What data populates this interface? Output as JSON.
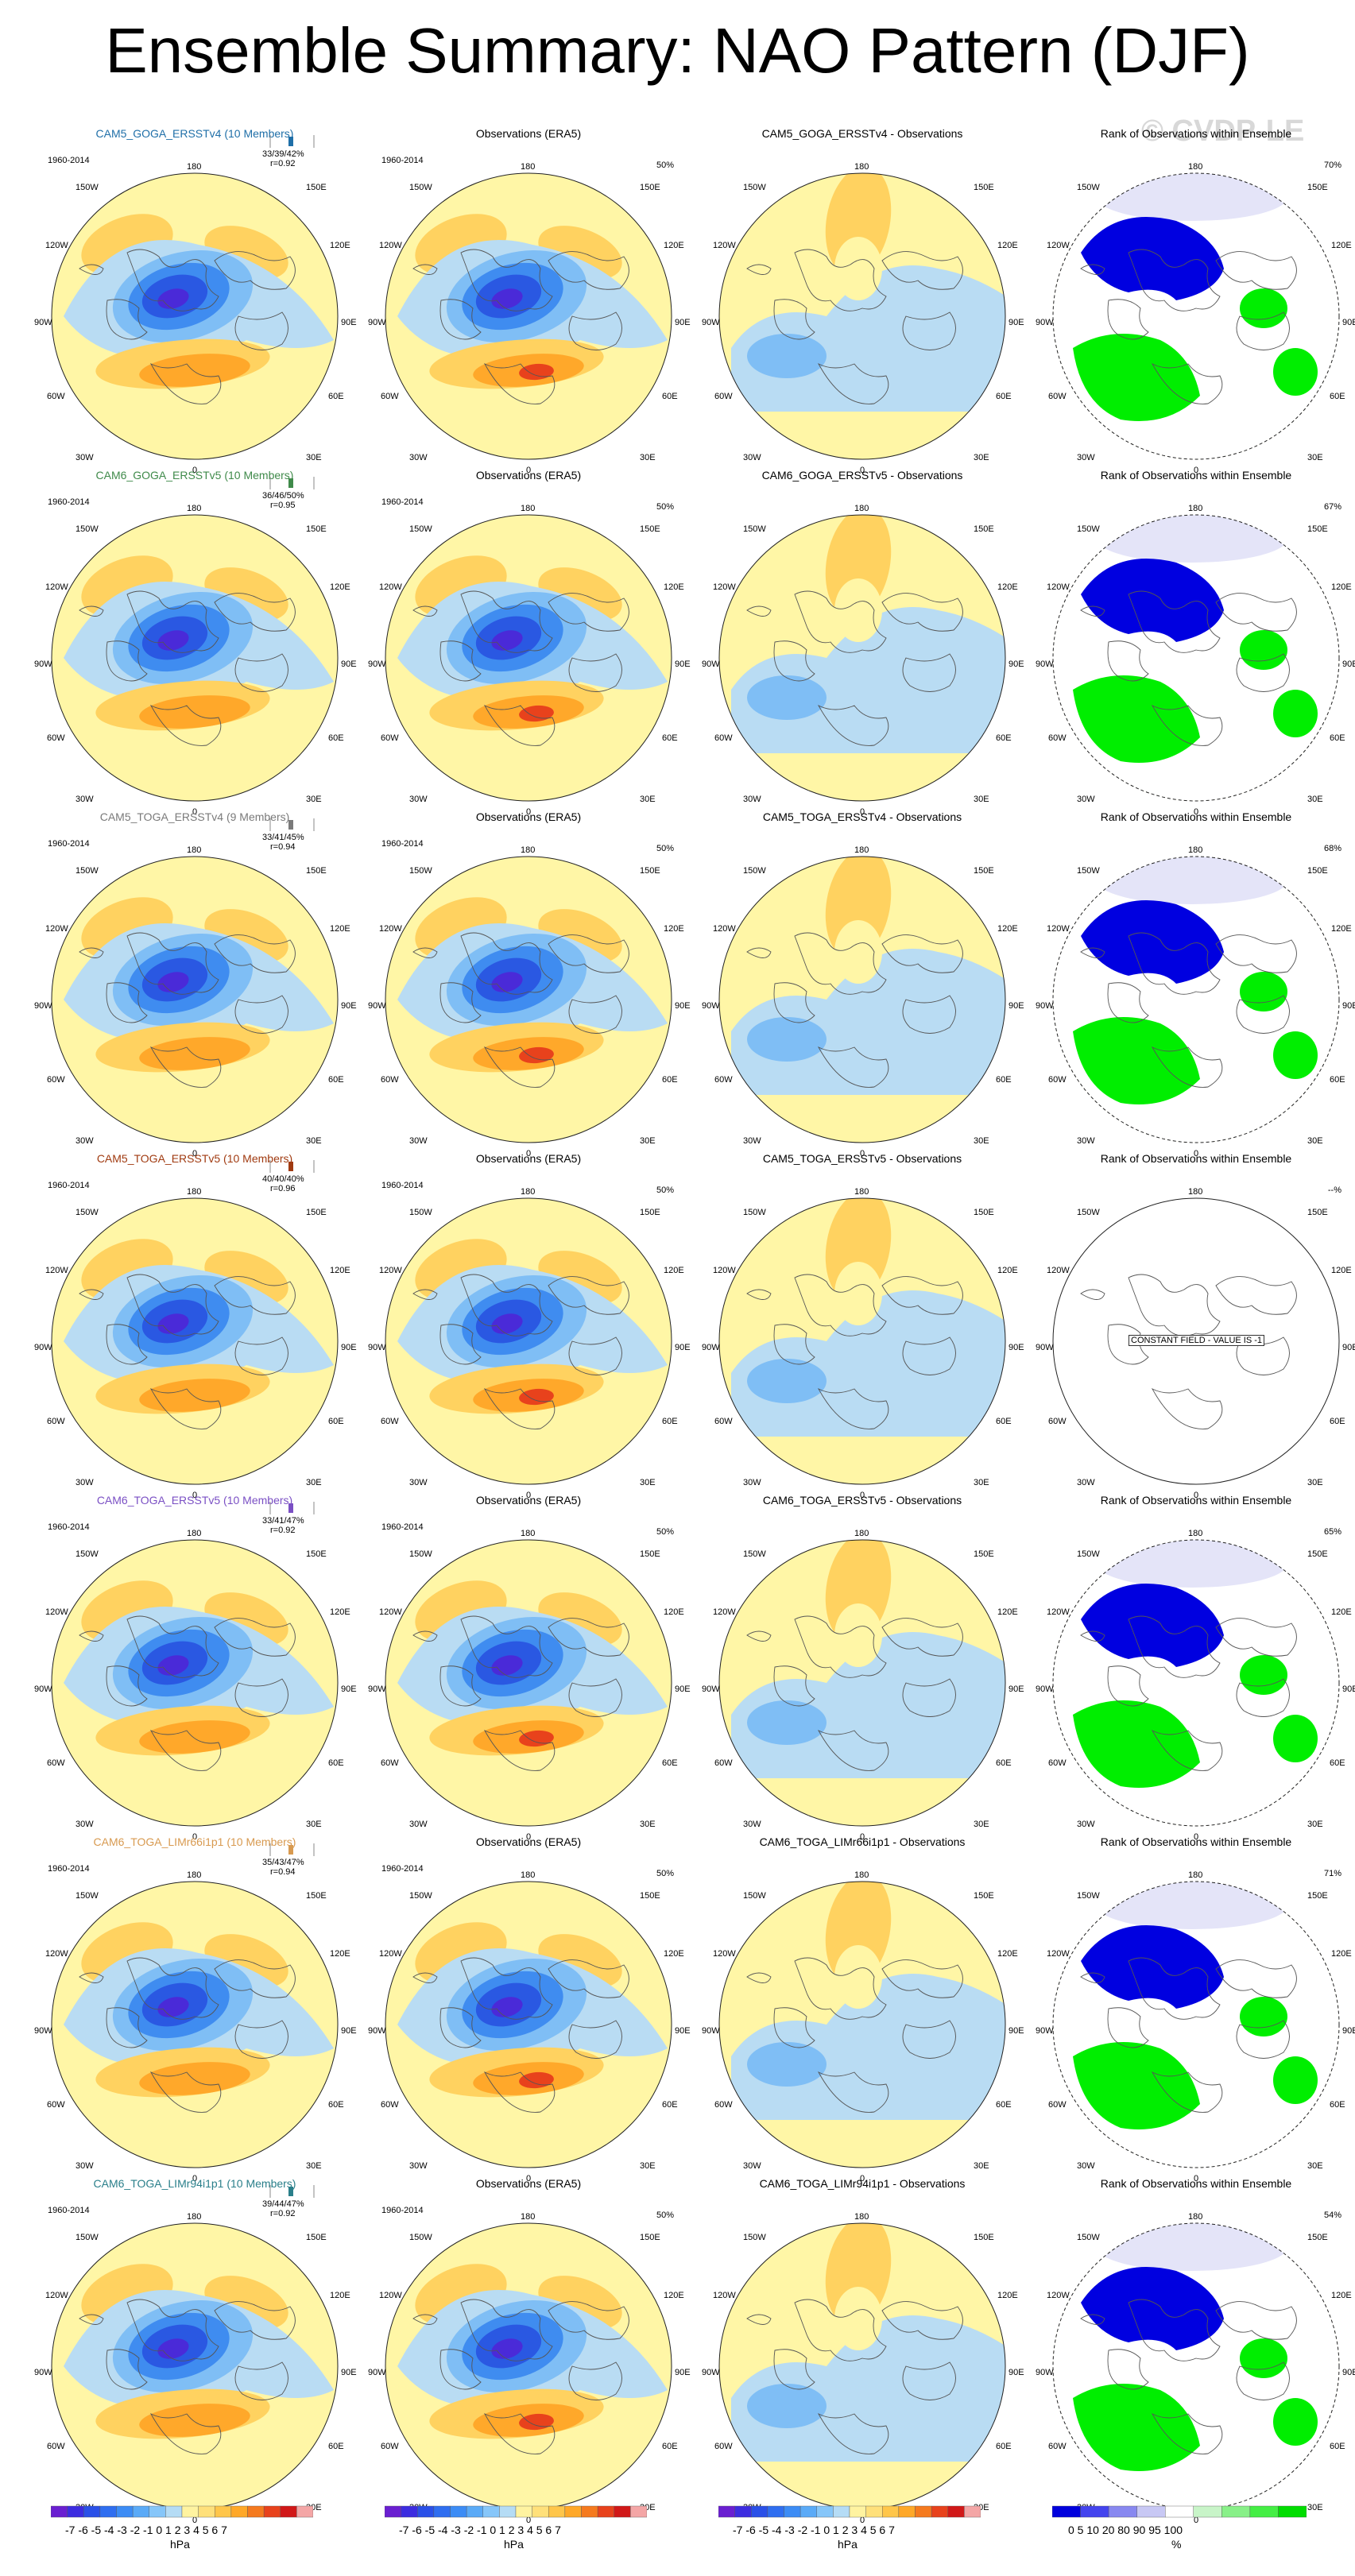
{
  "title": "Ensemble Summary: NAO Pattern (DJF)",
  "watermark": "© CVDP-LE",
  "period": "1960-2014",
  "obs_title": "Observations (ERA5)",
  "rank_title": "Rank of Observations within Ensemble",
  "obs_pct": "50%",
  "constant_field": "CONSTANT FIELD - VALUE IS -1",
  "lon_labels": {
    "n": "180",
    "nw": "150W",
    "ne": "150E",
    "w2": "120W",
    "e2": "120E",
    "w": "90W",
    "e": "90E",
    "sw2": "60W",
    "se2": "60E",
    "sw": "30W",
    "se": "30E",
    "s": "0"
  },
  "rows": [
    {
      "model": "CAM5_GOGA_ERSSTv4 (10 Members)",
      "model_color": "#1f6fa8",
      "stats": "33/39/42%",
      "r": "r=0.92",
      "diff_title": "CAM5_GOGA_ERSSTv4 - Observations",
      "rank_pct": "70%"
    },
    {
      "model": "CAM6_GOGA_ERSSTv5 (10 Members)",
      "model_color": "#3f8a4a",
      "stats": "36/46/50%",
      "r": "r=0.95",
      "diff_title": "CAM6_GOGA_ERSSTv5 - Observations",
      "rank_pct": "67%"
    },
    {
      "model": "CAM5_TOGA_ERSSTv4 (9 Members)",
      "model_color": "#7a7a7a",
      "stats": "33/41/45%",
      "r": "r=0.94",
      "diff_title": "CAM5_TOGA_ERSSTv4 - Observations",
      "rank_pct": "68%"
    },
    {
      "model": "CAM5_TOGA_ERSSTv5 (10 Members)",
      "model_color": "#a03a10",
      "stats": "40/40/40%",
      "r": "r=0.96",
      "diff_title": "CAM5_TOGA_ERSSTv5 - Observations",
      "rank_pct": "--%"
    },
    {
      "model": "CAM6_TOGA_ERSSTv5 (10 Members)",
      "model_color": "#7a4fc4",
      "stats": "33/41/47%",
      "r": "r=0.92",
      "diff_title": "CAM6_TOGA_ERSSTv5 - Observations",
      "rank_pct": "65%"
    },
    {
      "model": "CAM6_TOGA_LIMr66i1p1 (10 Members)",
      "model_color": "#d89a50",
      "stats": "35/43/47%",
      "r": "r=0.94",
      "diff_title": "CAM6_TOGA_LIMr66i1p1 - Observations",
      "rank_pct": "71%"
    },
    {
      "model": "CAM6_TOGA_LIMr94i1p1 (10 Members)",
      "model_color": "#2a7f8a",
      "stats": "39/44/47%",
      "r": "r=0.92",
      "diff_title": "CAM6_TOGA_LIMr94i1p1 - Observations",
      "rank_pct": "54%"
    }
  ],
  "colorbar_hpa": {
    "ticks": "-7 -6 -5 -4 -3 -2 -1 0  1  2  3  4  5  6  7",
    "unit": "hPa",
    "colors": [
      "#6a1fd1",
      "#3c2ce0",
      "#2a50e8",
      "#2f6ef0",
      "#3c8cf5",
      "#5aaaf7",
      "#86c6f9",
      "#b5dcf5",
      "#fff3a0",
      "#ffe07a",
      "#ffc64a",
      "#ffa828",
      "#f57a1e",
      "#e8421c",
      "#d11818",
      "#f4a6a6"
    ]
  },
  "colorbar_rank": {
    "ticks": "0  5  10   20      80    90 95 100",
    "unit": "%",
    "colors": [
      "#0000dd",
      "#4444ee",
      "#8888f0",
      "#c8c8f4",
      "#ffffff",
      "#c8f4c8",
      "#88f088",
      "#44ee44",
      "#00dd00"
    ]
  },
  "colors": {
    "yellow": "#fff6a6",
    "orange": "#ffd260",
    "orange2": "#ffa82a",
    "red": "#e8421c",
    "lightblue": "#b9dcf3",
    "blue2": "#7fbef5",
    "blue3": "#3f8cf0",
    "blue4": "#2a58e2",
    "blue5": "#4a2ad8",
    "rank_blue": "#0000e0",
    "rank_green": "#00ee00",
    "rank_lavender": "#e4e4f8"
  }
}
